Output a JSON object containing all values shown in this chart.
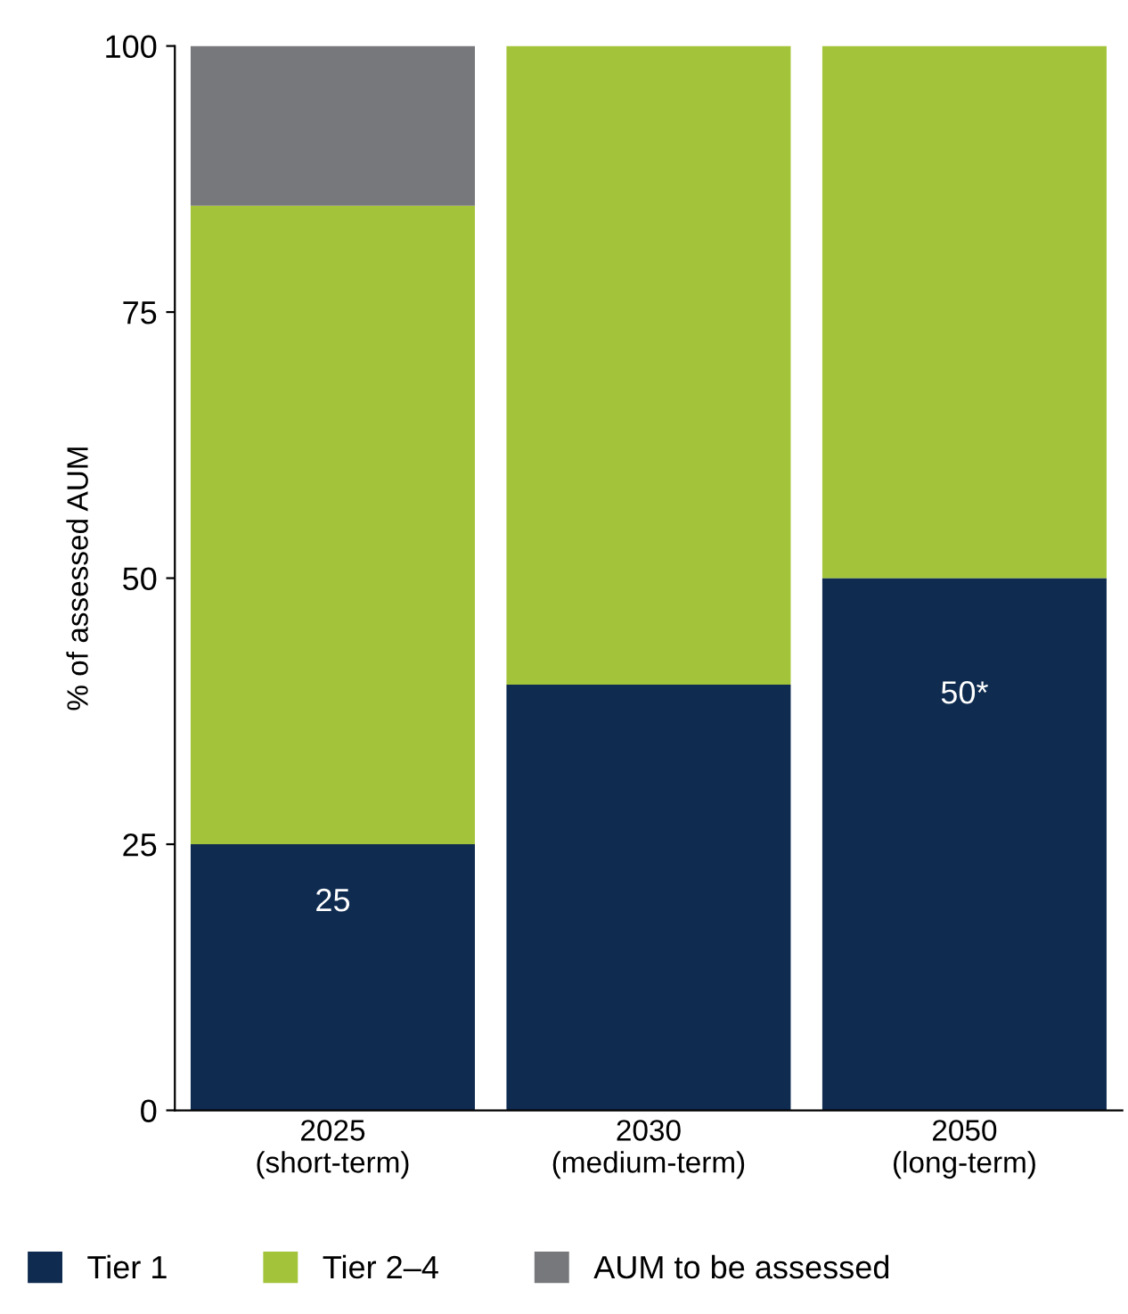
{
  "chart_data": {
    "type": "bar",
    "stacked": true,
    "ylabel": "% of assessed AUM",
    "categories": [
      "2025\n(short-term)",
      "2030\n(medium-term)",
      "2050\n(long-term)"
    ],
    "series": [
      {
        "name": "Tier 1",
        "color": "#0f2b50",
        "values": [
          25,
          40,
          50
        ],
        "value_labels": [
          "25",
          null,
          "50*"
        ]
      },
      {
        "name": "Tier 2–4",
        "color": "#a3c43a",
        "values": [
          60,
          60,
          50
        ]
      },
      {
        "name": "AUM to be assessed",
        "color": "#77787b",
        "values": [
          15,
          0,
          0
        ]
      }
    ],
    "ylim": [
      0,
      100
    ],
    "yticks": [
      0,
      25,
      50,
      75,
      100
    ],
    "grid": false,
    "legend": "bottom"
  }
}
